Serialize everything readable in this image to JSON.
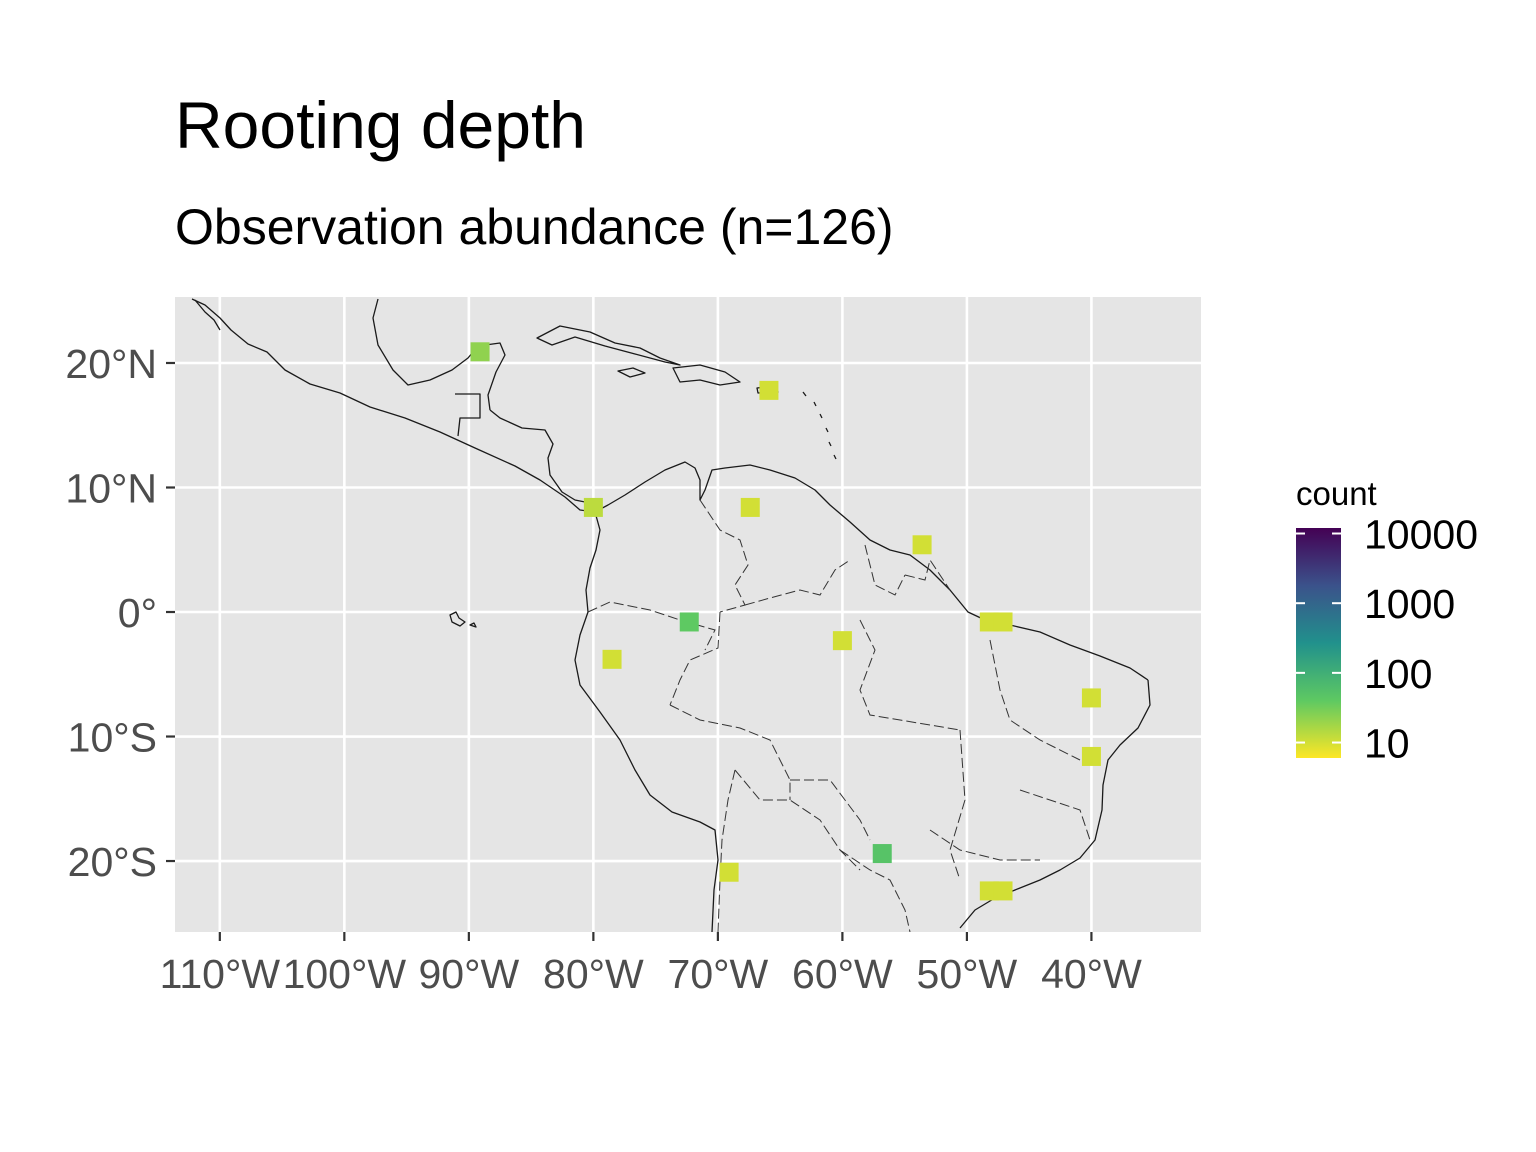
{
  "title": "Rooting depth",
  "subtitle": "Observation abundance (n=126)",
  "chart_data": {
    "type": "map",
    "title": "Rooting depth",
    "subtitle": "Observation abundance (n=126)",
    "projection": "equirectangular",
    "xlim": [
      -113.6,
      -31.2
    ],
    "ylim": [
      -25.7,
      25.3
    ],
    "grid": true,
    "x_ticks": [
      {
        "value": -110,
        "label": "110°W"
      },
      {
        "value": -100,
        "label": "100°W"
      },
      {
        "value": -90,
        "label": "90°W"
      },
      {
        "value": -80,
        "label": "80°W"
      },
      {
        "value": -70,
        "label": "70°W"
      },
      {
        "value": -60,
        "label": "60°W"
      },
      {
        "value": -50,
        "label": "50°W"
      },
      {
        "value": -40,
        "label": "40°W"
      }
    ],
    "y_ticks": [
      {
        "value": 20,
        "label": "20°N"
      },
      {
        "value": 10,
        "label": "10°N"
      },
      {
        "value": 0,
        "label": "0°"
      },
      {
        "value": -10,
        "label": "10°S"
      },
      {
        "value": -20,
        "label": "20°S"
      }
    ],
    "legend": {
      "title": "count",
      "scale": "log10",
      "placement": "right",
      "palette": "viridis (reversed)",
      "colors": [
        "#fde725",
        "#5ec962",
        "#21918c",
        "#3b528b",
        "#440154"
      ],
      "breaks": [
        {
          "value": 10,
          "label": "10"
        },
        {
          "value": 100,
          "label": "100"
        },
        {
          "value": 1000,
          "label": "1000"
        },
        {
          "value": 10000,
          "label": "10000"
        }
      ],
      "range": [
        6,
        12000
      ]
    },
    "points": [
      {
        "lon": -89.1,
        "lat": 20.9,
        "count": 22
      },
      {
        "lon": -65.9,
        "lat": 17.8,
        "count": 10
      },
      {
        "lon": -80.0,
        "lat": 8.4,
        "count": 13
      },
      {
        "lon": -67.4,
        "lat": 8.4,
        "count": 10
      },
      {
        "lon": -53.6,
        "lat": 5.4,
        "count": 10
      },
      {
        "lon": -72.3,
        "lat": -0.8,
        "count": 40
      },
      {
        "lon": -48.2,
        "lat": -0.8,
        "count": 10
      },
      {
        "lon": -47.1,
        "lat": -0.8,
        "count": 10
      },
      {
        "lon": -60.0,
        "lat": -2.3,
        "count": 10
      },
      {
        "lon": -78.5,
        "lat": -3.8,
        "count": 10
      },
      {
        "lon": -40.0,
        "lat": -6.9,
        "count": 10
      },
      {
        "lon": -40.0,
        "lat": -11.6,
        "count": 10
      },
      {
        "lon": -56.8,
        "lat": -19.4,
        "count": 50
      },
      {
        "lon": -69.1,
        "lat": -20.9,
        "count": 10
      },
      {
        "lon": -48.2,
        "lat": -22.4,
        "count": 10
      },
      {
        "lon": -47.1,
        "lat": -22.4,
        "count": 10
      }
    ]
  }
}
